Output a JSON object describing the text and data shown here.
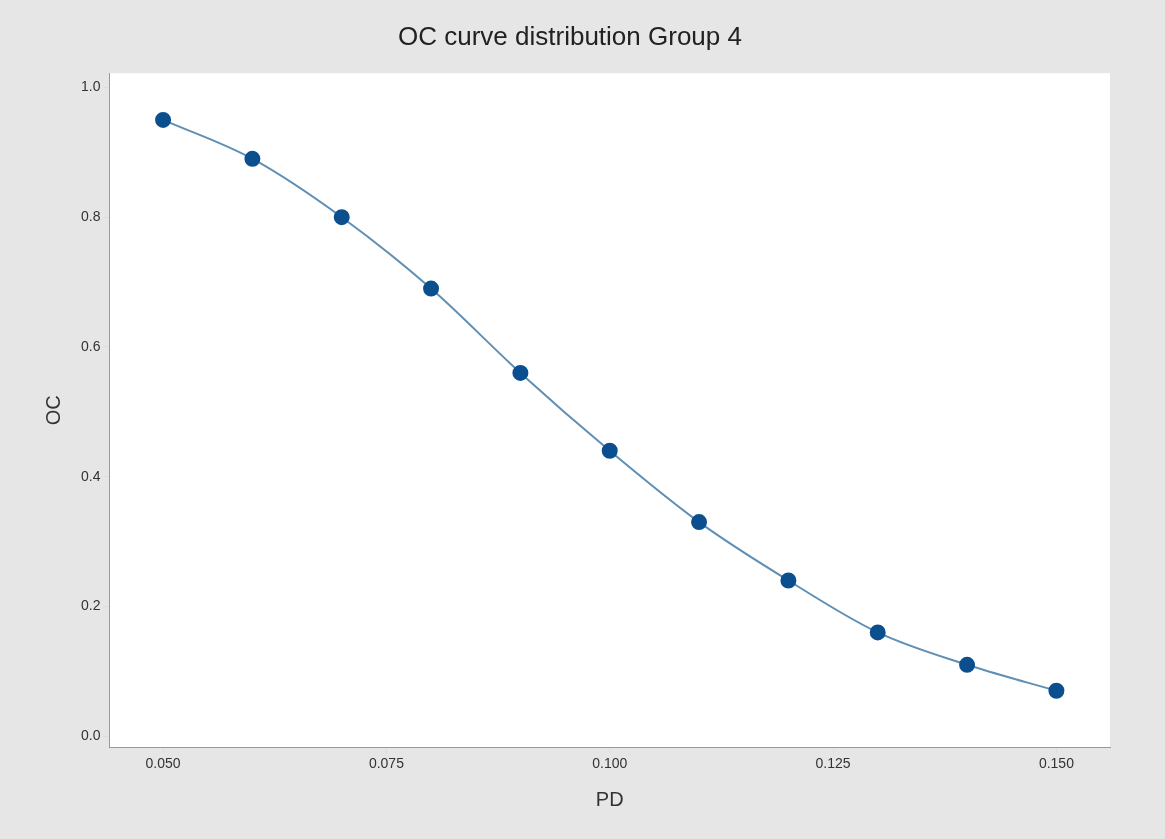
{
  "chart_data": {
    "type": "line",
    "title": "OC curve distribution Group 4",
    "xlabel": "PD",
    "ylabel": "OC",
    "x": [
      0.05,
      0.06,
      0.07,
      0.08,
      0.09,
      0.1,
      0.11,
      0.12,
      0.13,
      0.14,
      0.15
    ],
    "series": [
      {
        "color": "#0b4f8f",
        "values": [
          0.95,
          0.89,
          0.8,
          0.69,
          0.56,
          0.44,
          0.33,
          0.24,
          0.16,
          0.11,
          0.07
        ]
      }
    ],
    "xlim": [
      0.044,
      0.156
    ],
    "xticks": [
      {
        "value": 0.05,
        "label": "0.050"
      },
      {
        "value": 0.075,
        "label": "0.075"
      },
      {
        "value": 0.1,
        "label": "0.100"
      },
      {
        "value": 0.125,
        "label": "0.125"
      },
      {
        "value": 0.15,
        "label": "0.150"
      }
    ],
    "ylim": [
      -0.017,
      1.022
    ],
    "yticks": [
      {
        "value": 0,
        "label": "0.0"
      },
      {
        "value": 0.2,
        "label": "0.2"
      },
      {
        "value": 0.4,
        "label": "0.4"
      },
      {
        "value": 0.6,
        "label": "0.6"
      },
      {
        "value": 0.8,
        "label": "0.8"
      },
      {
        "value": 1,
        "label": "1.0"
      }
    ],
    "grid": false,
    "legend": false,
    "marker": "circle",
    "line_style": "solid"
  }
}
